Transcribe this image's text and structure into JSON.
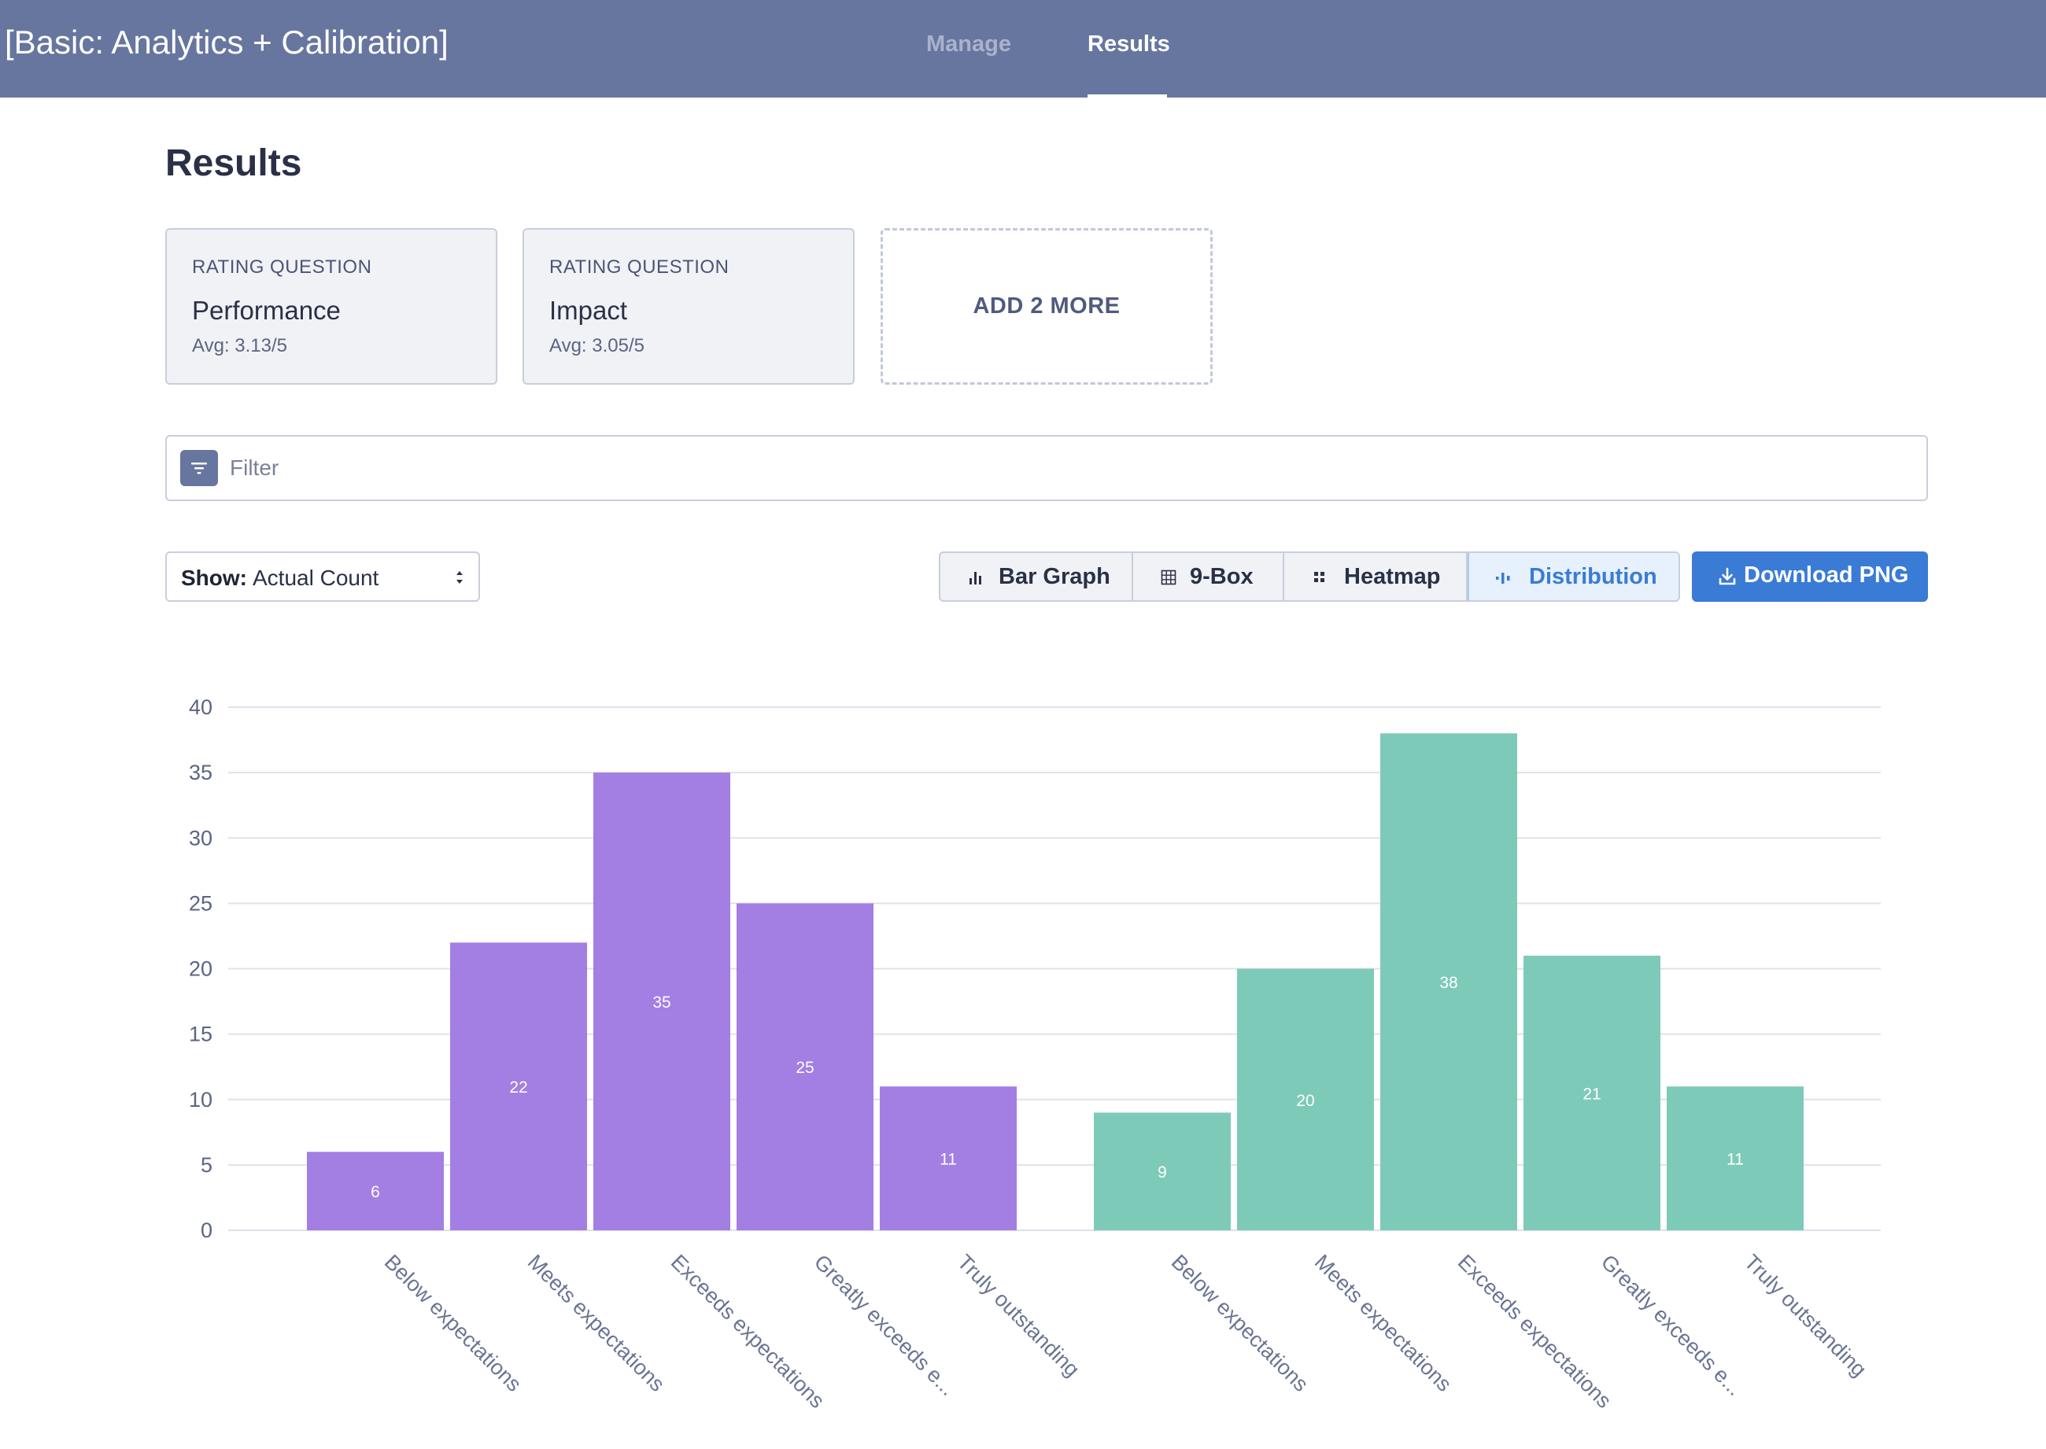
{
  "app": {
    "title": "[Basic: Analytics + Calibration]",
    "nav": [
      {
        "label": "Manage",
        "active": false
      },
      {
        "label": "Results",
        "active": true
      }
    ]
  },
  "page": {
    "title": "Results"
  },
  "questions": [
    {
      "type": "RATING QUESTION",
      "name": "Performance",
      "avg": "Avg: 3.13/5"
    },
    {
      "type": "RATING QUESTION",
      "name": "Impact",
      "avg": "Avg: 3.05/5"
    }
  ],
  "add_more_label": "ADD 2 MORE",
  "filter": {
    "placeholder": "Filter",
    "value": ""
  },
  "show_select": {
    "label": "Show:",
    "value": "Actual Count"
  },
  "views": [
    {
      "label": "Bar Graph",
      "icon": "bar-chart-icon",
      "active": false
    },
    {
      "label": "9-Box",
      "icon": "grid-icon",
      "active": false
    },
    {
      "label": "Heatmap",
      "icon": "heatmap-icon",
      "active": false
    },
    {
      "label": "Distribution",
      "icon": "distribution-icon",
      "active": true
    }
  ],
  "download_label": "Download PNG",
  "colors": {
    "header": "#67769f",
    "accent": "#3a7bd5",
    "series_performance": "#a37ee3",
    "series_impact": "#7ecab8"
  },
  "chart_data": {
    "type": "bar",
    "ylim": [
      0,
      40
    ],
    "yticks": [
      0,
      5,
      10,
      15,
      20,
      25,
      30,
      35,
      40
    ],
    "grid": true,
    "groups": [
      {
        "categories": [
          "Below expectations",
          "Meets expectations",
          "Exceeds expectations",
          "Greatly exceeds e...",
          "Truly outstanding"
        ],
        "values": [
          6,
          22,
          35,
          25,
          11
        ],
        "color": "#a37ee3"
      },
      {
        "categories": [
          "Below expectations",
          "Meets expectations",
          "Exceeds expectations",
          "Greatly exceeds e...",
          "Truly outstanding"
        ],
        "values": [
          9,
          20,
          38,
          21,
          11
        ],
        "color": "#7ecab8"
      }
    ]
  }
}
